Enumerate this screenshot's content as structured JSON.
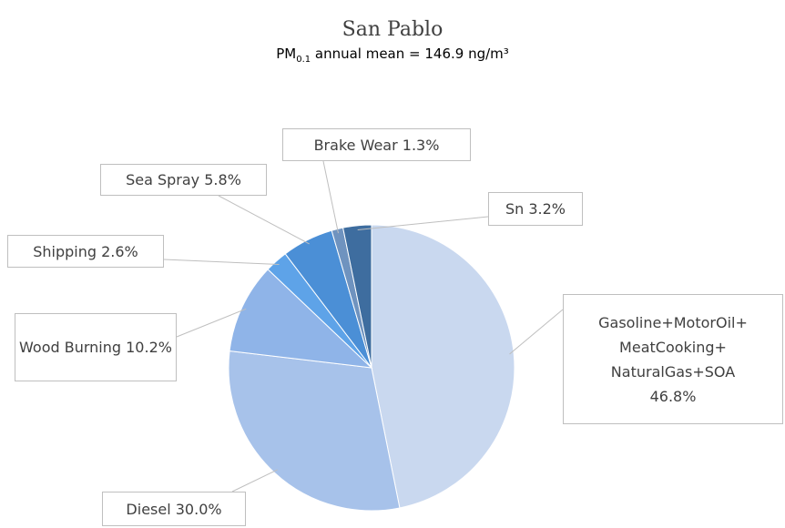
{
  "chart_data": {
    "type": "pie",
    "title": "San Pablo",
    "subtitle": [
      "PM",
      "0.1",
      " annual mean = 146.9 ng/m³"
    ],
    "categories": [
      "Gasoline+MotorOil+\nMeatCooking+\nNaturalGas+SOA",
      "Diesel",
      "Wood Burning",
      "Shipping",
      "Sea Spray",
      "Brake Wear",
      "Sn"
    ],
    "values": [
      46.8,
      30.0,
      10.2,
      2.6,
      5.8,
      1.3,
      3.2
    ],
    "value_labels": [
      "46.8%",
      "30.0%",
      "10.2%",
      "2.6%",
      "5.8%",
      "1.3%",
      "3.2%"
    ],
    "colors": [
      "#c9d8ef",
      "#a7c2ea",
      "#8fb4e8",
      "#5ea3e8",
      "#4b8fd6",
      "#6f93bf",
      "#3e6d9f"
    ]
  }
}
